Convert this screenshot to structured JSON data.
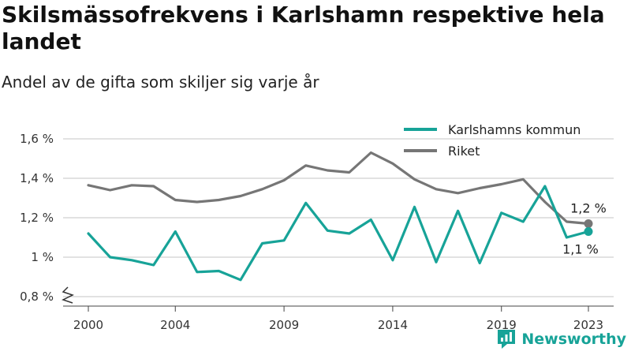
{
  "header": {
    "title": "Skilsmässofrekvens i Karlshamn respektive hela landet",
    "subtitle": "Andel av de gifta som skiljer sig varje år"
  },
  "brand": {
    "name": "Newsworthy",
    "icon": "newsworthy-logo-icon",
    "color": "#17a398"
  },
  "chart_data": {
    "type": "line",
    "x": [
      2000,
      2001,
      2002,
      2003,
      2004,
      2005,
      2006,
      2007,
      2008,
      2009,
      2010,
      2011,
      2012,
      2013,
      2014,
      2015,
      2016,
      2017,
      2018,
      2019,
      2020,
      2021,
      2022,
      2023
    ],
    "x_ticks": [
      2000,
      2004,
      2009,
      2014,
      2019,
      2023
    ],
    "x_tick_labels": [
      "2000",
      "2004",
      "2009",
      "2014",
      "2019",
      "2023"
    ],
    "y_ticks": [
      0.8,
      1.0,
      1.2,
      1.4,
      1.6
    ],
    "y_tick_labels": [
      "0,8 %",
      "1 %",
      "1,2 %",
      "1,4 %",
      "1,6 %"
    ],
    "ylim": [
      0.8,
      1.6
    ],
    "grid": true,
    "axis_break": true,
    "legend_position": "top-right",
    "series": [
      {
        "name": "Karlshamns kommun",
        "color": "#17a398",
        "values": [
          1.12,
          1.0,
          0.985,
          0.96,
          1.13,
          0.925,
          0.93,
          0.885,
          1.07,
          1.085,
          1.275,
          1.135,
          1.12,
          1.19,
          0.985,
          1.255,
          0.975,
          1.235,
          0.97,
          1.225,
          1.18,
          1.36,
          1.1,
          1.13
        ],
        "end_label": "1,1 %"
      },
      {
        "name": "Riket",
        "color": "#767676",
        "values": [
          1.365,
          1.34,
          1.365,
          1.36,
          1.29,
          1.28,
          1.29,
          1.31,
          1.345,
          1.39,
          1.465,
          1.44,
          1.43,
          1.53,
          1.475,
          1.395,
          1.345,
          1.325,
          1.35,
          1.37,
          1.395,
          1.28,
          1.18,
          1.17
        ],
        "end_label": "1,2 %"
      }
    ]
  }
}
